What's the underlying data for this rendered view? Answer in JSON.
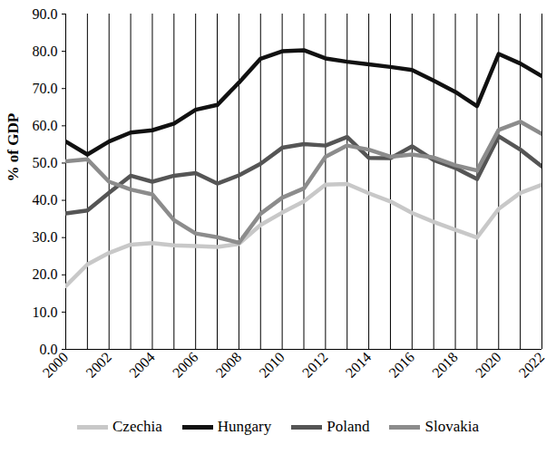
{
  "chart_data": {
    "type": "line",
    "ylabel": "% of GDP",
    "x": [
      2000,
      2001,
      2002,
      2003,
      2004,
      2005,
      2006,
      2007,
      2008,
      2009,
      2010,
      2011,
      2012,
      2013,
      2014,
      2015,
      2016,
      2017,
      2018,
      2019,
      2020,
      2021,
      2022
    ],
    "series": [
      {
        "name": "Czechia",
        "color": "#c8c8c8",
        "values": [
          17.0,
          22.8,
          25.9,
          28.1,
          28.5,
          27.9,
          27.7,
          27.5,
          28.3,
          33.4,
          36.7,
          39.7,
          44.2,
          44.4,
          41.9,
          39.7,
          36.6,
          34.2,
          32.1,
          30.0,
          37.7,
          42.0,
          44.2
        ]
      },
      {
        "name": "Hungary",
        "color": "#111111",
        "values": [
          55.8,
          52.3,
          55.8,
          58.2,
          58.8,
          60.6,
          64.3,
          65.6,
          71.6,
          78.0,
          80.0,
          80.3,
          78.1,
          77.2,
          76.5,
          75.8,
          75.0,
          72.1,
          69.1,
          65.3,
          79.3,
          76.7,
          73.3
        ]
      },
      {
        "name": "Poland",
        "color": "#555555",
        "values": [
          36.5,
          37.3,
          42.0,
          46.6,
          45.0,
          46.6,
          47.3,
          44.5,
          46.7,
          49.8,
          54.1,
          55.1,
          54.7,
          57.0,
          51.4,
          51.3,
          54.5,
          50.8,
          48.7,
          45.7,
          57.2,
          53.6,
          49.1
        ]
      },
      {
        "name": "Slovakia",
        "color": "#8c8c8c",
        "values": [
          50.5,
          51.0,
          45.0,
          42.9,
          41.6,
          34.7,
          31.1,
          30.1,
          28.6,
          36.4,
          40.7,
          43.2,
          51.7,
          54.7,
          53.6,
          51.7,
          52.3,
          51.5,
          49.4,
          48.0,
          58.9,
          61.1,
          57.8
        ]
      }
    ],
    "xlim": [
      2000,
      2022
    ],
    "xticks": [
      2000,
      2002,
      2004,
      2006,
      2008,
      2010,
      2012,
      2014,
      2016,
      2018,
      2020,
      2022
    ],
    "ylim": [
      0,
      90
    ],
    "yticks": [
      {
        "value": 0,
        "label": "0.0"
      },
      {
        "value": 10,
        "label": "10.0"
      },
      {
        "value": 20,
        "label": "20.0"
      },
      {
        "value": 30,
        "label": "30.0"
      },
      {
        "value": 40,
        "label": "40.0"
      },
      {
        "value": 50,
        "label": "50.0"
      },
      {
        "value": 60,
        "label": "60.0"
      },
      {
        "value": 70,
        "label": "70.0"
      },
      {
        "value": 80,
        "label": "80.0"
      },
      {
        "value": 90,
        "label": "90.0"
      }
    ],
    "grid": true,
    "legend": "bottom"
  }
}
